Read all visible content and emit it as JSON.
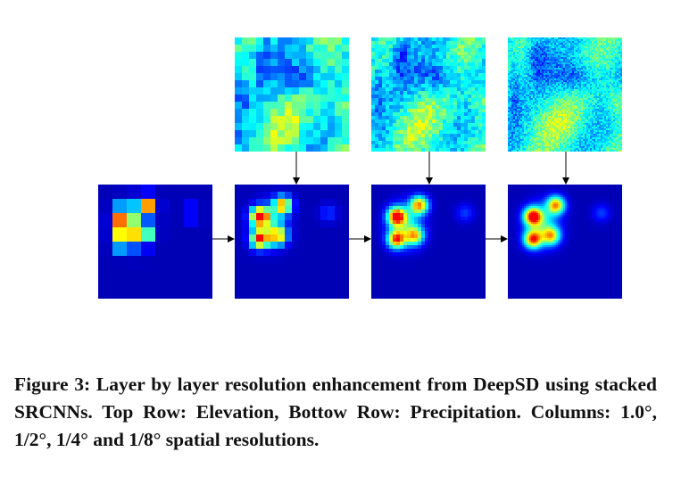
{
  "figure": {
    "caption_label": "Figure 3:",
    "caption_text": "Layer by layer resolution enhancement from DeepSD using stacked SRCNNs. Top Row: Elevation, Bottow Row: Precipitation. Columns: 1.0°, 1/2°, 1/4° and 1/8° spatial resolutions."
  },
  "colors": {
    "colormap": [
      "#00007f",
      "#0000ff",
      "#007fff",
      "#00ffff",
      "#7fff7f",
      "#ffff00",
      "#ff7f00",
      "#ff0000"
    ]
  }
}
